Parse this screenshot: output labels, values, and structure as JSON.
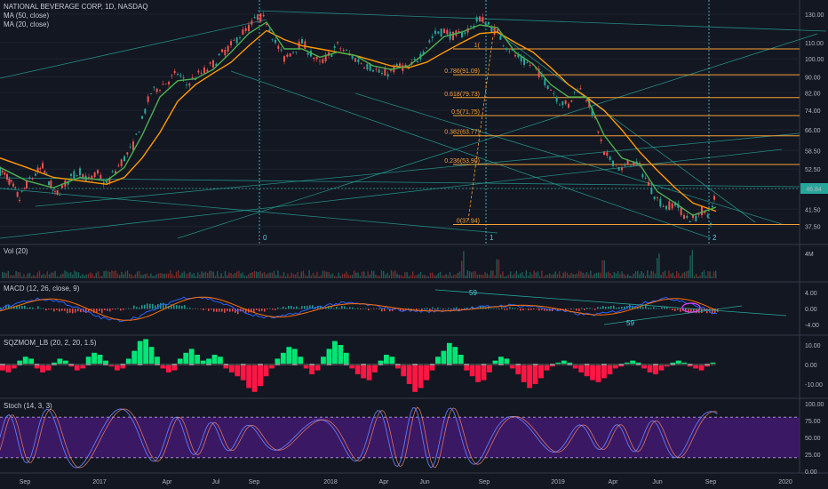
{
  "chart_data": [
    {
      "type": "line",
      "panel": "price",
      "title": "NATIONAL BEVERAGE CORP, 1D, NASDAQ",
      "series": [
        {
          "name": "MA (50, close)",
          "color": "#ff9800"
        },
        {
          "name": "MA (20, close)",
          "color": "#4caf50"
        }
      ],
      "y_ticks": [
        130.0,
        110.0,
        100.0,
        90.0,
        82.0,
        74.0,
        66.0,
        58.5,
        52.5,
        46.84,
        41.5,
        37.5
      ],
      "last_price": "46.84",
      "fib_levels": [
        {
          "label": "1(",
          "value": 106.0
        },
        {
          "label": "0.786(91.09)",
          "value": 91.09
        },
        {
          "label": "0.618(79.73)",
          "value": 79.73
        },
        {
          "label": "0.5(71.75)",
          "value": 71.75
        },
        {
          "label": "0.382(63.77)",
          "value": 63.77
        },
        {
          "label": "0.236(53.90)",
          "value": 53.9
        },
        {
          "label": "0(37.94)",
          "value": 37.94
        }
      ],
      "points": [
        "0",
        "1",
        "2"
      ],
      "price_path": [
        [
          0,
          52
        ],
        [
          8,
          50
        ],
        [
          15,
          47
        ],
        [
          22,
          44
        ],
        [
          30,
          48
        ],
        [
          40,
          51
        ],
        [
          48,
          53
        ],
        [
          55,
          49
        ],
        [
          62,
          45
        ],
        [
          70,
          47
        ],
        [
          80,
          50
        ],
        [
          90,
          52
        ],
        [
          100,
          49
        ],
        [
          110,
          51
        ],
        [
          120,
          48
        ],
        [
          130,
          52
        ],
        [
          140,
          56
        ],
        [
          150,
          60
        ],
        [
          160,
          70
        ],
        [
          170,
          82
        ],
        [
          180,
          85
        ],
        [
          190,
          88
        ],
        [
          200,
          92
        ],
        [
          210,
          86
        ],
        [
          220,
          90
        ],
        [
          230,
          93
        ],
        [
          240,
          97
        ],
        [
          250,
          103
        ],
        [
          260,
          108
        ],
        [
          270,
          115
        ],
        [
          280,
          120
        ],
        [
          290,
          128
        ],
        [
          300,
          125
        ],
        [
          310,
          110
        ],
        [
          320,
          100
        ],
        [
          330,
          105
        ],
        [
          340,
          110
        ],
        [
          350,
          103
        ],
        [
          360,
          97
        ],
        [
          370,
          102
        ],
        [
          380,
          108
        ],
        [
          390,
          104
        ],
        [
          400,
          100
        ],
        [
          410,
          97
        ],
        [
          420,
          95
        ],
        [
          430,
          91
        ],
        [
          440,
          93
        ],
        [
          450,
          96
        ],
        [
          460,
          94
        ],
        [
          470,
          100
        ],
        [
          480,
          108
        ],
        [
          490,
          116
        ],
        [
          500,
          118
        ],
        [
          510,
          114
        ],
        [
          520,
          116
        ],
        [
          530,
          120
        ],
        [
          540,
          127
        ],
        [
          550,
          122
        ],
        [
          560,
          116
        ],
        [
          570,
          108
        ],
        [
          580,
          102
        ],
        [
          590,
          98
        ],
        [
          600,
          96
        ],
        [
          610,
          90
        ],
        [
          620,
          84
        ],
        [
          630,
          78
        ],
        [
          640,
          76
        ],
        [
          650,
          85
        ],
        [
          660,
          80
        ],
        [
          670,
          70
        ],
        [
          680,
          57
        ],
        [
          690,
          55
        ],
        [
          700,
          52
        ],
        [
          710,
          55
        ],
        [
          720,
          53
        ],
        [
          730,
          48
        ],
        [
          740,
          44
        ],
        [
          750,
          42
        ],
        [
          760,
          43
        ],
        [
          770,
          40
        ],
        [
          780,
          39
        ],
        [
          790,
          41
        ],
        [
          800,
          39
        ],
        [
          806,
          46.84
        ]
      ],
      "ma50_path": [
        [
          0,
          56
        ],
        [
          30,
          53
        ],
        [
          60,
          50
        ],
        [
          90,
          49
        ],
        [
          120,
          48
        ],
        [
          140,
          50
        ],
        [
          160,
          56
        ],
        [
          180,
          65
        ],
        [
          200,
          78
        ],
        [
          220,
          86
        ],
        [
          240,
          92
        ],
        [
          260,
          98
        ],
        [
          280,
          108
        ],
        [
          300,
          118
        ],
        [
          320,
          112
        ],
        [
          340,
          108
        ],
        [
          360,
          106
        ],
        [
          380,
          104
        ],
        [
          400,
          102
        ],
        [
          420,
          99
        ],
        [
          440,
          96
        ],
        [
          460,
          95
        ],
        [
          480,
          98
        ],
        [
          500,
          104
        ],
        [
          520,
          110
        ],
        [
          540,
          116
        ],
        [
          560,
          117
        ],
        [
          580,
          110
        ],
        [
          600,
          104
        ],
        [
          620,
          95
        ],
        [
          640,
          86
        ],
        [
          660,
          80
        ],
        [
          680,
          74
        ],
        [
          700,
          66
        ],
        [
          720,
          58
        ],
        [
          740,
          52
        ],
        [
          760,
          47
        ],
        [
          780,
          43
        ],
        [
          806,
          41
        ]
      ],
      "ma20_path": [
        [
          0,
          53
        ],
        [
          30,
          49
        ],
        [
          60,
          47
        ],
        [
          90,
          50
        ],
        [
          120,
          49
        ],
        [
          140,
          53
        ],
        [
          160,
          64
        ],
        [
          180,
          80
        ],
        [
          200,
          88
        ],
        [
          220,
          89
        ],
        [
          240,
          94
        ],
        [
          260,
          104
        ],
        [
          280,
          116
        ],
        [
          300,
          124
        ],
        [
          320,
          106
        ],
        [
          340,
          106
        ],
        [
          360,
          101
        ],
        [
          380,
          104
        ],
        [
          400,
          102
        ],
        [
          420,
          96
        ],
        [
          440,
          94
        ],
        [
          460,
          96
        ],
        [
          480,
          104
        ],
        [
          500,
          114
        ],
        [
          520,
          117
        ],
        [
          540,
          122
        ],
        [
          560,
          120
        ],
        [
          580,
          104
        ],
        [
          600,
          97
        ],
        [
          620,
          86
        ],
        [
          640,
          80
        ],
        [
          660,
          80
        ],
        [
          680,
          64
        ],
        [
          700,
          56
        ],
        [
          720,
          54
        ],
        [
          740,
          46
        ],
        [
          760,
          43
        ],
        [
          780,
          40
        ],
        [
          806,
          42
        ]
      ]
    },
    {
      "type": "bar",
      "panel": "volume",
      "title": "Vol (20)",
      "y_ticks": [
        "4M"
      ]
    },
    {
      "type": "line",
      "panel": "macd",
      "title": "MACD (12, 26, close, 9)",
      "y_ticks": [
        4.0,
        0.0,
        -4.0
      ],
      "annotations": [
        "59",
        "59"
      ]
    },
    {
      "type": "bar",
      "panel": "squeeze",
      "title": "SQZMOM_LB (20, 2, 20, 1.5)",
      "y_ticks": [
        10.0,
        0.0,
        -10.0
      ],
      "values": [
        -3,
        -4,
        -2,
        2,
        4,
        3,
        -2,
        -4,
        -3,
        1,
        3,
        2,
        -1,
        -3,
        -2,
        4,
        6,
        5,
        2,
        -1,
        -3,
        -2,
        3,
        7,
        12,
        13,
        9,
        4,
        -2,
        -4,
        -3,
        3,
        6,
        8,
        5,
        2,
        3,
        5,
        4,
        -2,
        -4,
        -6,
        -8,
        -12,
        -14,
        -11,
        -6,
        -2,
        3,
        6,
        9,
        8,
        4,
        -2,
        -5,
        -3,
        4,
        8,
        12,
        10,
        6,
        -2,
        -5,
        -7,
        -8,
        -4,
        2,
        5,
        4,
        -2,
        -6,
        -10,
        -14,
        -12,
        -8,
        -3,
        4,
        7,
        11,
        9,
        5,
        -3,
        -6,
        -9,
        -8,
        -4,
        2,
        4,
        3,
        -2,
        -5,
        -9,
        -12,
        -10,
        -7,
        -3,
        -1,
        1,
        2,
        1,
        -2,
        -4,
        -6,
        -8,
        -9,
        -7,
        -5,
        -2,
        -1,
        1,
        2,
        1,
        -2,
        -4,
        -5,
        -3,
        -1,
        1,
        2,
        1,
        -1,
        -2,
        -3,
        -1,
        1
      ]
    },
    {
      "type": "line",
      "panel": "stoch",
      "title": "Stoch (14, 3, 3)",
      "y_ticks": [
        100.0,
        75.0,
        50.0,
        25.0,
        0.0
      ]
    }
  ],
  "x_axis": {
    "labels": [
      "Sep",
      "2017",
      "Apr",
      "Jul",
      "Sep",
      "2018",
      "Apr",
      "Jun",
      "Sep",
      "2019",
      "Apr",
      "Jun",
      "Sep",
      "2020"
    ]
  },
  "legend": {
    "title": "NATIONAL BEVERAGE CORP, 1D, NASDAQ",
    "ma50": "MA (50, close)",
    "ma20": "MA (20, close)"
  },
  "colors": {
    "background": "#131722",
    "fib": "#f7a035",
    "ma50": "#ff9800",
    "ma20": "#4caf50",
    "trend": "#26a69a",
    "pivot": "#4dd0e1",
    "macd": "#2962ff",
    "signal": "#ff6d00",
    "sqz_up": "#00e676",
    "sqz_down": "#ff1744",
    "stoch_fill": "#4a1a7a"
  }
}
